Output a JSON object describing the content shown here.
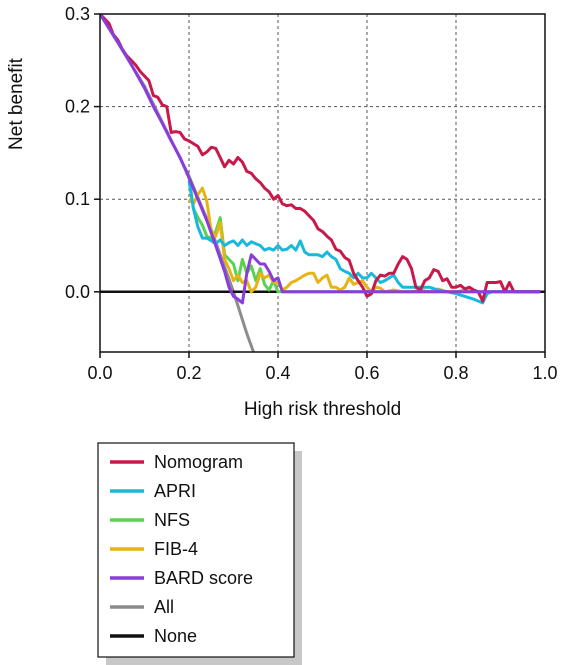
{
  "chart_data": {
    "type": "line",
    "title": "",
    "xlabel": "High risk threshold",
    "ylabel": "Net benefit",
    "xlim": [
      0,
      1
    ],
    "ylim": [
      -0.065,
      0.3
    ],
    "x_ticks": [
      {
        "value": 0.0,
        "label": "0.0"
      },
      {
        "value": 0.2,
        "label": "0.2"
      },
      {
        "value": 0.4,
        "label": "0.4"
      },
      {
        "value": 0.6,
        "label": "0.6"
      },
      {
        "value": 0.8,
        "label": "0.8"
      },
      {
        "value": 1.0,
        "label": "1.0"
      }
    ],
    "y_ticks": [
      {
        "value": 0.0,
        "label": "0.0"
      },
      {
        "value": 0.1,
        "label": "0.1"
      },
      {
        "value": 0.2,
        "label": "0.2"
      },
      {
        "value": 0.3,
        "label": "0.3"
      }
    ],
    "grid": true,
    "legend_position": "below",
    "series": [
      {
        "name": "Nomogram",
        "color": "#c8194b",
        "points": [
          [
            0,
            0.3
          ],
          [
            0.02,
            0.29
          ],
          [
            0.03,
            0.278
          ],
          [
            0.04,
            0.272
          ],
          [
            0.05,
            0.262
          ],
          [
            0.06,
            0.255
          ],
          [
            0.07,
            0.25
          ],
          [
            0.08,
            0.245
          ],
          [
            0.09,
            0.238
          ],
          [
            0.1,
            0.233
          ],
          [
            0.11,
            0.228
          ],
          [
            0.12,
            0.212
          ],
          [
            0.13,
            0.21
          ],
          [
            0.14,
            0.202
          ],
          [
            0.15,
            0.2
          ],
          [
            0.16,
            0.172
          ],
          [
            0.17,
            0.173
          ],
          [
            0.18,
            0.172
          ],
          [
            0.19,
            0.165
          ],
          [
            0.2,
            0.163
          ],
          [
            0.21,
            0.16
          ],
          [
            0.22,
            0.157
          ],
          [
            0.23,
            0.148
          ],
          [
            0.24,
            0.151
          ],
          [
            0.25,
            0.156
          ],
          [
            0.26,
            0.155
          ],
          [
            0.27,
            0.145
          ],
          [
            0.28,
            0.135
          ],
          [
            0.29,
            0.142
          ],
          [
            0.3,
            0.138
          ],
          [
            0.31,
            0.145
          ],
          [
            0.32,
            0.14
          ],
          [
            0.33,
            0.13
          ],
          [
            0.34,
            0.128
          ],
          [
            0.35,
            0.122
          ],
          [
            0.36,
            0.118
          ],
          [
            0.37,
            0.112
          ],
          [
            0.38,
            0.108
          ],
          [
            0.39,
            0.1
          ],
          [
            0.4,
            0.104
          ],
          [
            0.41,
            0.095
          ],
          [
            0.42,
            0.093
          ],
          [
            0.43,
            0.094
          ],
          [
            0.44,
            0.09
          ],
          [
            0.45,
            0.09
          ],
          [
            0.46,
            0.087
          ],
          [
            0.47,
            0.082
          ],
          [
            0.48,
            0.077
          ],
          [
            0.49,
            0.068
          ],
          [
            0.5,
            0.065
          ],
          [
            0.51,
            0.06
          ],
          [
            0.52,
            0.056
          ],
          [
            0.53,
            0.046
          ],
          [
            0.54,
            0.044
          ],
          [
            0.55,
            0.037
          ],
          [
            0.56,
            0.034
          ],
          [
            0.57,
            0.02
          ],
          [
            0.58,
            0.012
          ],
          [
            0.59,
            0.005
          ],
          [
            0.6,
            -0.005
          ],
          [
            0.61,
            -0.002
          ],
          [
            0.62,
            0.012
          ],
          [
            0.63,
            0.018
          ],
          [
            0.64,
            0.017
          ],
          [
            0.65,
            0.02
          ],
          [
            0.66,
            0.02
          ],
          [
            0.67,
            0.03
          ],
          [
            0.68,
            0.038
          ],
          [
            0.69,
            0.035
          ],
          [
            0.7,
            0.025
          ],
          [
            0.71,
            0.005
          ],
          [
            0.72,
            0.002
          ],
          [
            0.73,
            0.012
          ],
          [
            0.74,
            0.015
          ],
          [
            0.75,
            0.024
          ],
          [
            0.76,
            0.022
          ],
          [
            0.77,
            0.012
          ],
          [
            0.78,
            0.014
          ],
          [
            0.79,
            0.005
          ],
          [
            0.8,
            0.005
          ],
          [
            0.81,
            0.007
          ],
          [
            0.82,
            0.003
          ],
          [
            0.83,
            0.005
          ],
          [
            0.84,
            0.002
          ],
          [
            0.85,
            0.0
          ],
          [
            0.86,
            -0.01
          ],
          [
            0.87,
            0.01
          ],
          [
            0.88,
            0.01
          ],
          [
            0.89,
            0.01
          ],
          [
            0.9,
            0.011
          ],
          [
            0.91,
            0.0
          ],
          [
            0.92,
            0.01
          ],
          [
            0.93,
            0.0
          ],
          [
            0.95,
            0.0
          ],
          [
            0.99,
            0.0
          ]
        ]
      },
      {
        "name": "APRI",
        "color": "#19b9dc",
        "points": [
          [
            0.2,
            0.12
          ],
          [
            0.21,
            0.09
          ],
          [
            0.22,
            0.07
          ],
          [
            0.23,
            0.058
          ],
          [
            0.24,
            0.058
          ],
          [
            0.25,
            0.055
          ],
          [
            0.26,
            0.052
          ],
          [
            0.27,
            0.056
          ],
          [
            0.28,
            0.05
          ],
          [
            0.29,
            0.053
          ],
          [
            0.3,
            0.055
          ],
          [
            0.31,
            0.05
          ],
          [
            0.32,
            0.056
          ],
          [
            0.33,
            0.05
          ],
          [
            0.34,
            0.054
          ],
          [
            0.35,
            0.052
          ],
          [
            0.36,
            0.05
          ],
          [
            0.37,
            0.045
          ],
          [
            0.38,
            0.047
          ],
          [
            0.39,
            0.045
          ],
          [
            0.4,
            0.05
          ],
          [
            0.41,
            0.045
          ],
          [
            0.42,
            0.046
          ],
          [
            0.43,
            0.05
          ],
          [
            0.44,
            0.045
          ],
          [
            0.45,
            0.055
          ],
          [
            0.46,
            0.043
          ],
          [
            0.47,
            0.04
          ],
          [
            0.48,
            0.04
          ],
          [
            0.49,
            0.04
          ],
          [
            0.5,
            0.038
          ],
          [
            0.51,
            0.043
          ],
          [
            0.52,
            0.038
          ],
          [
            0.53,
            0.035
          ],
          [
            0.54,
            0.025
          ],
          [
            0.55,
            0.022
          ],
          [
            0.56,
            0.02
          ],
          [
            0.57,
            0.015
          ],
          [
            0.58,
            0.02
          ],
          [
            0.59,
            0.015
          ],
          [
            0.6,
            0.015
          ],
          [
            0.61,
            0.02
          ],
          [
            0.62,
            0.015
          ],
          [
            0.63,
            0.01
          ],
          [
            0.64,
            0.012
          ],
          [
            0.65,
            0.015
          ],
          [
            0.66,
            0.018
          ],
          [
            0.67,
            0.01
          ],
          [
            0.68,
            0.005
          ],
          [
            0.7,
            0.005
          ],
          [
            0.72,
            0.005
          ],
          [
            0.74,
            0.005
          ],
          [
            0.76,
            0.002
          ],
          [
            0.78,
            0.0
          ],
          [
            0.8,
            -0.002
          ],
          [
            0.82,
            -0.005
          ],
          [
            0.84,
            -0.008
          ],
          [
            0.86,
            -0.012
          ],
          [
            0.87,
            -0.002
          ],
          [
            0.88,
            0.0
          ],
          [
            0.99,
            0.0
          ]
        ]
      },
      {
        "name": "NFS",
        "color": "#5ad250",
        "points": [
          [
            0.2,
            0.125
          ],
          [
            0.21,
            0.09
          ],
          [
            0.22,
            0.08
          ],
          [
            0.23,
            0.072
          ],
          [
            0.24,
            0.06
          ],
          [
            0.25,
            0.058
          ],
          [
            0.26,
            0.065
          ],
          [
            0.27,
            0.08
          ],
          [
            0.28,
            0.04
          ],
          [
            0.29,
            0.035
          ],
          [
            0.3,
            0.03
          ],
          [
            0.31,
            0.012
          ],
          [
            0.32,
            0.035
          ],
          [
            0.33,
            0.02
          ],
          [
            0.34,
            0.028
          ],
          [
            0.35,
            0.012
          ],
          [
            0.36,
            0.025
          ],
          [
            0.37,
            0.008
          ],
          [
            0.38,
            0.002
          ],
          [
            0.39,
            0.012
          ],
          [
            0.4,
            0.0
          ],
          [
            0.42,
            0.0
          ],
          [
            0.99,
            0.0
          ]
        ]
      },
      {
        "name": "FIB-4",
        "color": "#e6b414",
        "points": [
          [
            0.2,
            0.1
          ],
          [
            0.21,
            0.095
          ],
          [
            0.22,
            0.105
          ],
          [
            0.23,
            0.112
          ],
          [
            0.24,
            0.098
          ],
          [
            0.25,
            0.065
          ],
          [
            0.26,
            0.06
          ],
          [
            0.27,
            0.075
          ],
          [
            0.28,
            0.035
          ],
          [
            0.29,
            0.025
          ],
          [
            0.3,
            0.012
          ],
          [
            0.31,
            0.018
          ],
          [
            0.32,
            0.01
          ],
          [
            0.33,
            0.012
          ],
          [
            0.34,
            0.0
          ],
          [
            0.35,
            0.005
          ],
          [
            0.36,
            0.02
          ],
          [
            0.37,
            0.015
          ],
          [
            0.38,
            0.018
          ],
          [
            0.39,
            0.01
          ],
          [
            0.4,
            0.01
          ],
          [
            0.41,
            0.002
          ],
          [
            0.42,
            0.005
          ],
          [
            0.43,
            0.01
          ],
          [
            0.44,
            0.012
          ],
          [
            0.45,
            0.015
          ],
          [
            0.46,
            0.018
          ],
          [
            0.47,
            0.02
          ],
          [
            0.48,
            0.02
          ],
          [
            0.49,
            0.01
          ],
          [
            0.5,
            0.015
          ],
          [
            0.51,
            0.018
          ],
          [
            0.52,
            0.005
          ],
          [
            0.53,
            0.005
          ],
          [
            0.54,
            0.002
          ],
          [
            0.55,
            0.005
          ],
          [
            0.56,
            0.015
          ],
          [
            0.57,
            0.008
          ],
          [
            0.58,
            0.01
          ],
          [
            0.59,
            0.012
          ],
          [
            0.6,
            0.005
          ],
          [
            0.61,
            0.0
          ],
          [
            0.62,
            0.005
          ],
          [
            0.63,
            0.004
          ],
          [
            0.64,
            0.0
          ],
          [
            0.66,
            0.002
          ],
          [
            0.68,
            0.0
          ],
          [
            0.7,
            0.0
          ],
          [
            0.72,
            0.002
          ],
          [
            0.74,
            0.0
          ],
          [
            0.76,
            0.003
          ],
          [
            0.78,
            0.0
          ],
          [
            0.8,
            0.0
          ],
          [
            0.82,
            0.002
          ],
          [
            0.84,
            0.0
          ],
          [
            0.99,
            0.0
          ]
        ]
      },
      {
        "name": "BARD score",
        "color": "#8a3cdc",
        "points": [
          [
            0,
            0.3
          ],
          [
            0.02,
            0.285
          ],
          [
            0.04,
            0.27
          ],
          [
            0.06,
            0.254
          ],
          [
            0.08,
            0.237
          ],
          [
            0.1,
            0.22
          ],
          [
            0.12,
            0.2
          ],
          [
            0.14,
            0.182
          ],
          [
            0.16,
            0.163
          ],
          [
            0.18,
            0.145
          ],
          [
            0.2,
            0.123
          ],
          [
            0.22,
            0.1
          ],
          [
            0.24,
            0.077
          ],
          [
            0.26,
            0.05
          ],
          [
            0.28,
            0.022
          ],
          [
            0.29,
            0.005
          ],
          [
            0.3,
            -0.005
          ],
          [
            0.31,
            -0.008
          ],
          [
            0.32,
            -0.012
          ],
          [
            0.33,
            0.02
          ],
          [
            0.34,
            0.04
          ],
          [
            0.35,
            0.035
          ],
          [
            0.36,
            0.03
          ],
          [
            0.37,
            0.03
          ],
          [
            0.38,
            0.022
          ],
          [
            0.39,
            0.012
          ],
          [
            0.4,
            0.015
          ],
          [
            0.41,
            0.0
          ],
          [
            0.42,
            0.0
          ],
          [
            0.99,
            0.0
          ]
        ]
      },
      {
        "name": "All",
        "color": "#8c8c8c",
        "points": [
          [
            0,
            0.3
          ],
          [
            0.1,
            0.222
          ],
          [
            0.2,
            0.125
          ],
          [
            0.25,
            0.067
          ],
          [
            0.3,
            0.0
          ],
          [
            0.33,
            -0.045
          ],
          [
            0.345,
            -0.065
          ]
        ]
      },
      {
        "name": "None",
        "color": "#111111",
        "points": [
          [
            0,
            0.0
          ],
          [
            1,
            0.0
          ]
        ]
      }
    ]
  }
}
